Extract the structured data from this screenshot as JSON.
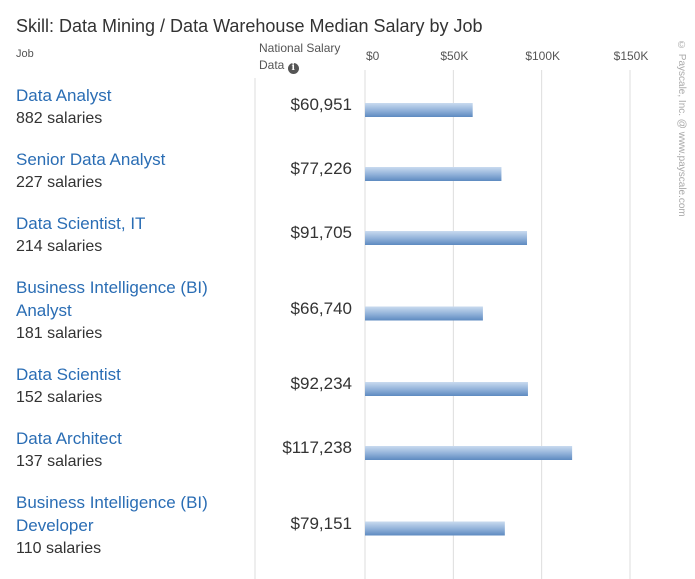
{
  "header": {
    "job_column": "Job",
    "salary_column_line1": "National Salary",
    "salary_column_line2": "Data",
    "info_icon": "info-icon"
  },
  "watermark": "© Payscale, Inc. @ www.payscale.com",
  "colors": {
    "link": "#2a6db4",
    "bar_top": "#c9dbef",
    "bar_bottom": "#5d8ac0",
    "grid": "#dddddd"
  },
  "chart_data": {
    "type": "bar",
    "orientation": "horizontal",
    "title": "Skill: Data Mining / Data Warehouse Median Salary by Job",
    "xlim": [
      0,
      150000
    ],
    "ticks": [
      0,
      50000,
      100000,
      150000
    ],
    "tick_labels": [
      "$0",
      "$50K",
      "$100K",
      "$150K"
    ],
    "grid": true,
    "categories": [
      "Data Analyst",
      "Senior Data Analyst",
      "Data Scientist, IT",
      "Business Intelligence (BI) Analyst",
      "Data Scientist",
      "Data Architect",
      "Business Intelligence (BI) Developer"
    ],
    "counts": [
      "882 salaries",
      "227 salaries",
      "214 salaries",
      "181 salaries",
      "152 salaries",
      "137 salaries",
      "110 salaries"
    ],
    "values": [
      60951,
      77226,
      91705,
      66740,
      92234,
      117238,
      79151
    ],
    "value_labels": [
      "$60,951",
      "$77,226",
      "$91,705",
      "$66,740",
      "$92,234",
      "$117,238",
      "$79,151"
    ]
  }
}
